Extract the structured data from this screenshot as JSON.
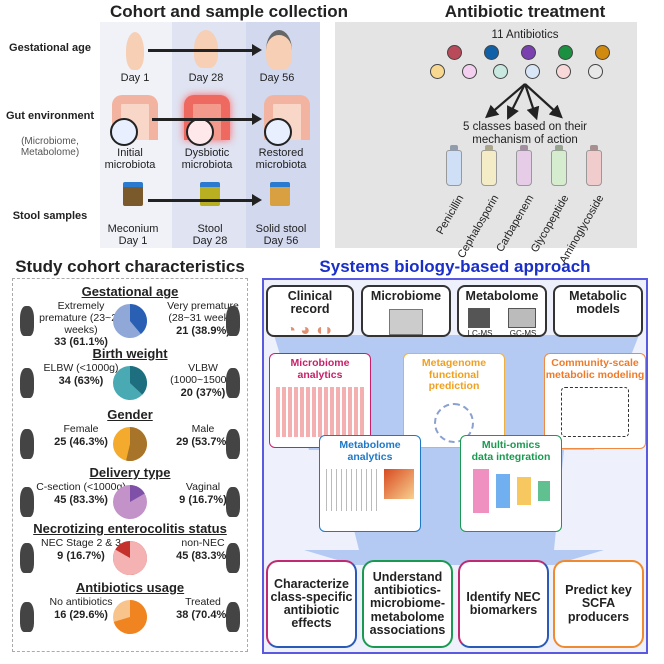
{
  "cohort": {
    "title": "Cohort and sample collection",
    "rows": {
      "gestational_age": "Gestational age",
      "gut_env": "Gut environment",
      "gut_env_sub": "(Microbiome, Metabolome)",
      "stool": "Stool samples"
    },
    "days": [
      "Day 1",
      "Day 28",
      "Day 56"
    ],
    "microbiota": [
      "Initial microbiota",
      "Dysbiotic microbiota",
      "Restored microbiota"
    ],
    "stool_labels": [
      {
        "name": "Meconium",
        "day": "Day 1"
      },
      {
        "name": "Stool",
        "day": "Day 28"
      },
      {
        "name": "Solid stool",
        "day": "Day 56"
      }
    ]
  },
  "antibiotic": {
    "title": "Antibiotic treatment",
    "count_label": "11 Antibiotics",
    "pill_colors_row1": [
      "#b84a5a",
      "#1060a8",
      "#7a40b0",
      "#1a9040",
      "#d08a10"
    ],
    "pill_colors_row2": [
      "#f8d890",
      "#f4d0f0",
      "#c8e8e0",
      "#d8e6f8",
      "#f8d8d8",
      "#e8e8e8"
    ],
    "classes_caption": "5 classes based on their mechanism of action",
    "classes": [
      {
        "name": "Penicillin",
        "color": "#cfe0f6"
      },
      {
        "name": "Cephalosporin",
        "color": "#f4ecc6"
      },
      {
        "name": "Carbapenem",
        "color": "#e6cce6"
      },
      {
        "name": "Glycopeptide",
        "color": "#d6ecce"
      },
      {
        "name": "Aminoglycoside",
        "color": "#f0cccc"
      }
    ]
  },
  "characteristics": {
    "title": "Study cohort characteristics",
    "sections": [
      {
        "heading": "Gestational age",
        "left": "Extremely premature (23~27 weeks)",
        "left_n": "33 (61.1%)",
        "right": "Very premature (28~31 weeks)",
        "right_n": "21 (38.9%)",
        "right_fraction": 0.389,
        "colors": [
          "#8fa8d8",
          "#2a60b4"
        ]
      },
      {
        "heading": "Birth weight",
        "left": "ELBW (<1000g)",
        "left_n": "34 (63%)",
        "right": "VLBW (1000~1500g)",
        "right_n": "20 (37%)",
        "right_fraction": 0.37,
        "colors": [
          "#4aaab4",
          "#1d6e7e"
        ]
      },
      {
        "heading": "Gender",
        "left": "Female",
        "left_n": "25 (46.3%)",
        "right": "Male",
        "right_n": "29 (53.7%)",
        "right_fraction": 0.537,
        "colors": [
          "#f4aa2c",
          "#a8742a"
        ]
      },
      {
        "heading": "Delivery type",
        "left": "C-section (<1000g)",
        "left_n": "45 (83.3%)",
        "right": "Vaginal",
        "right_n": "9 (16.7%)",
        "right_fraction": 0.167,
        "colors": [
          "#c292c8",
          "#7e50a8"
        ]
      },
      {
        "heading": "Necrotizing enterocolitis status",
        "left": "NEC Stage 2 & 3",
        "left_n": "9 (16.7%)",
        "right": "non-NEC",
        "right_n": "45 (83.3%)",
        "right_fraction": 0.833,
        "colors": [
          "#c4302c",
          "#f4b2b2"
        ]
      },
      {
        "heading": "Antibiotics usage",
        "left": "No antibiotics",
        "left_n": "16 (29.6%)",
        "right": "Treated",
        "right_n": "38 (70.4%)",
        "right_fraction": 0.704,
        "colors": [
          "#f8c48c",
          "#f08420"
        ]
      }
    ]
  },
  "systems": {
    "title": "Systems biology-based approach",
    "sources": [
      "Clinical record",
      "Microbiome",
      "Metabolome",
      "Metabolic models"
    ],
    "ms_labels": [
      "LC-MS",
      "GC-MS"
    ],
    "analyses": [
      {
        "label": "Microbiome analytics",
        "color": "#c8206a"
      },
      {
        "label": "Metagenome functional prediction",
        "color": "#f0a020"
      },
      {
        "label": "Community-scale metabolic modeling",
        "color": "#f07a28"
      },
      {
        "label": "Metabolome analytics",
        "color": "#1e78c8"
      },
      {
        "label": "Multi-omics data integration",
        "color": "#1a9a50"
      }
    ],
    "goals": [
      "Characterize class-specific antibiotic effects",
      "Understand antibiotics-microbiome-metabolome associations",
      "Identify NEC biomarkers",
      "Predict key SCFA producers"
    ]
  }
}
